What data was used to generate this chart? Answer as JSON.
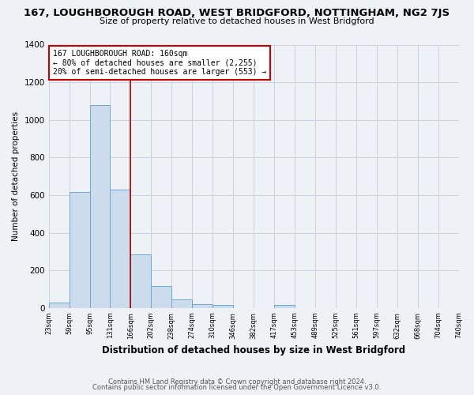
{
  "title": "167, LOUGHBOROUGH ROAD, WEST BRIDGFORD, NOTTINGHAM, NG2 7JS",
  "subtitle": "Size of property relative to detached houses in West Bridgford",
  "xlabel": "Distribution of detached houses by size in West Bridgford",
  "ylabel": "Number of detached properties",
  "bar_heights": [
    30,
    615,
    1080,
    630,
    285,
    115,
    45,
    20,
    15,
    0,
    0,
    18,
    0,
    0,
    0,
    0,
    0,
    0,
    0,
    0
  ],
  "bin_labels": [
    "23sqm",
    "59sqm",
    "95sqm",
    "131sqm",
    "166sqm",
    "202sqm",
    "238sqm",
    "274sqm",
    "310sqm",
    "346sqm",
    "382sqm",
    "417sqm",
    "453sqm",
    "489sqm",
    "525sqm",
    "561sqm",
    "597sqm",
    "632sqm",
    "668sqm",
    "704sqm",
    "740sqm"
  ],
  "bar_color": "#ccdcec",
  "bar_edge_color": "#6aaad4",
  "vline_color": "#aa0000",
  "annotation_line1": "167 LOUGHBOROUGH ROAD: 160sqm",
  "annotation_line2": "← 80% of detached houses are smaller (2,255)",
  "annotation_line3": "20% of semi-detached houses are larger (553) →",
  "annotation_box_edge_color": "#cc0000",
  "ylim": [
    0,
    1400
  ],
  "yticks": [
    0,
    200,
    400,
    600,
    800,
    1000,
    1200,
    1400
  ],
  "footer_line1": "Contains HM Land Registry data © Crown copyright and database right 2024.",
  "footer_line2": "Contains public sector information licensed under the Open Government Licence v3.0.",
  "bg_color": "#eef2f7",
  "plot_bg_color": "#eef2f7",
  "grid_color": "#c8d4e0"
}
